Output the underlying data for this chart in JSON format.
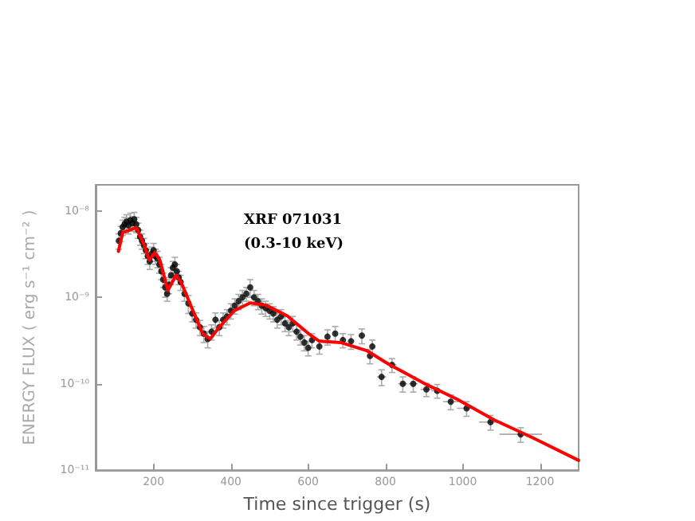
{
  "chart_data": {
    "type": "scatter",
    "annotations": [
      "XRF 071031",
      "(0.3-10 keV)"
    ],
    "xlabel": "Time since trigger (s)",
    "ylabel": "ENERGY FLUX ( erg s⁻¹ cm⁻² )",
    "log": "y",
    "grid": false,
    "marker": "circle",
    "xlim": [
      50,
      1300
    ],
    "xticks": [
      200,
      400,
      600,
      800,
      1000,
      1200
    ],
    "ylim": [
      1e-11,
      2e-08
    ],
    "yticks": [
      {
        "value": 1e-11,
        "label": "10⁻¹¹"
      },
      {
        "value": 1e-10,
        "label": "10⁻¹⁰"
      },
      {
        "value": 1e-09,
        "label": "10⁻⁹"
      },
      {
        "value": 1e-08,
        "label": "10⁻⁸"
      }
    ],
    "series": [
      {
        "color": "#000000",
        "x": [
          110,
          115,
          120,
          125,
          130,
          135,
          140,
          145,
          150,
          155,
          160,
          165,
          170,
          175,
          180,
          185,
          190,
          195,
          200,
          205,
          210,
          215,
          220,
          225,
          230,
          235,
          240,
          245,
          250,
          255,
          260,
          265,
          270,
          280,
          290,
          300,
          310,
          320,
          330,
          340,
          350,
          360,
          370,
          380,
          390,
          400,
          410,
          420,
          430,
          440,
          450,
          460,
          470,
          480,
          490,
          500,
          510,
          520,
          530,
          540,
          550,
          560,
          570,
          580,
          590,
          600,
          610,
          629,
          650,
          670,
          690,
          711,
          739,
          760,
          766,
          790,
          817,
          845,
          872,
          906,
          934,
          969,
          1010,
          1072,
          1150
        ],
        "values": [
          4.5e-09,
          5.5e-09,
          6.5e-09,
          7e-09,
          7.5e-09,
          6.8e-09,
          7.8e-09,
          7.2e-09,
          8e-09,
          7e-09,
          6e-09,
          5e-09,
          4.5e-09,
          4e-09,
          3.5e-09,
          3e-09,
          2.6e-09,
          3.2e-09,
          3.5e-09,
          3e-09,
          2.8e-09,
          2.4e-09,
          2e-09,
          1.6e-09,
          1.3e-09,
          1.1e-09,
          1.4e-09,
          1.8e-09,
          2.2e-09,
          2.4e-09,
          2e-09,
          1.7e-09,
          1.5e-09,
          1.1e-09,
          8.5e-10,
          6.5e-10,
          5.5e-10,
          4.5e-10,
          3.8e-10,
          3.3e-10,
          4e-10,
          5.5e-10,
          4.5e-10,
          5.5e-10,
          6e-10,
          7e-10,
          8e-10,
          9e-10,
          1e-09,
          1.1e-09,
          1.3e-09,
          1e-09,
          9e-10,
          8e-10,
          7.5e-10,
          7e-10,
          6.5e-10,
          5.5e-10,
          6e-10,
          5e-10,
          4.5e-10,
          5e-10,
          4e-10,
          3.5e-10,
          3e-10,
          2.6e-10,
          3.2e-10,
          2.7e-10,
          3.5e-10,
          3.8e-10,
          3.2e-10,
          3.1e-10,
          3.6e-10,
          2.1e-10,
          2.7e-10,
          1.2e-10,
          1.65e-10,
          1e-10,
          1e-10,
          8.6e-11,
          8.3e-11,
          6.2e-11,
          5.2e-11,
          3.6e-11,
          2.6e-11
        ],
        "errors": [
          9e-10,
          1.1e-09,
          1.3e-09,
          1.4e-09,
          1.5e-09,
          1.4e-09,
          1.6e-09,
          1.4e-09,
          1.6e-09,
          1.4e-09,
          1.2e-09,
          1e-09,
          9e-10,
          8e-10,
          7e-10,
          6e-10,
          5e-10,
          6e-10,
          7e-10,
          6e-10,
          6e-10,
          5e-10,
          4e-10,
          3e-10,
          3e-10,
          2e-10,
          3e-10,
          4e-10,
          4e-10,
          5e-10,
          4e-10,
          3e-10,
          3e-10,
          2e-10,
          2e-10,
          1.3e-10,
          1.1e-10,
          9e-11,
          8e-11,
          7e-11,
          8e-11,
          1.1e-10,
          9e-11,
          1.1e-10,
          1.2e-10,
          1.4e-10,
          1.6e-10,
          1.8e-10,
          2e-10,
          2e-10,
          3e-10,
          2e-10,
          1.8e-10,
          1.6e-10,
          1.5e-10,
          1.4e-10,
          1.3e-10,
          1.1e-10,
          1.2e-10,
          1e-10,
          9e-11,
          1e-10,
          8e-11,
          7e-11,
          6e-11,
          5e-11,
          6e-11,
          5e-11,
          7e-11,
          8e-11,
          6e-11,
          6e-11,
          7e-11,
          4e-11,
          5e-11,
          2.5e-11,
          3e-11,
          2e-11,
          2e-11,
          1.5e-11,
          1.5e-11,
          1.2e-11,
          1e-11,
          7e-12,
          5e-12
        ],
        "xerrors": [
          null,
          null,
          null,
          null,
          null,
          null,
          null,
          null,
          null,
          null,
          null,
          null,
          null,
          null,
          null,
          null,
          null,
          null,
          null,
          null,
          null,
          null,
          null,
          null,
          null,
          null,
          null,
          null,
          null,
          null,
          null,
          null,
          null,
          null,
          null,
          null,
          null,
          null,
          null,
          null,
          null,
          null,
          null,
          null,
          null,
          null,
          null,
          null,
          null,
          null,
          null,
          null,
          null,
          null,
          null,
          null,
          null,
          null,
          null,
          null,
          null,
          null,
          null,
          null,
          null,
          null,
          null,
          null,
          null,
          null,
          null,
          null,
          null,
          null,
          null,
          12,
          12,
          12,
          12,
          15,
          15,
          20,
          25,
          30,
          55
        ]
      },
      {
        "type": "line",
        "color": "#ff0000",
        "marker": "none",
        "x": [
          109,
          120,
          134,
          155,
          175,
          189,
          203,
          216,
          237,
          258,
          271,
          299,
          327,
          347,
          368,
          409,
          450,
          491,
          546,
          601,
          629,
          684,
          753,
          807,
          904,
          986,
          1082,
          1179,
          1300
        ],
        "values": [
          3.4e-09,
          5.6e-09,
          5.9e-09,
          6.4e-09,
          4.1e-09,
          2.7e-09,
          3.3e-09,
          2.7e-09,
          1.2e-09,
          1.8e-09,
          1.5e-09,
          7.5e-10,
          3.8e-10,
          3.3e-10,
          4.4e-10,
          7e-10,
          8.6e-10,
          8.1e-10,
          6.1e-10,
          3.8e-10,
          3.1e-10,
          3e-10,
          2.4e-10,
          1.7e-10,
          9.9e-11,
          6.6e-11,
          3.8e-11,
          2.4e-11,
          1.3e-11
        ]
      }
    ]
  }
}
